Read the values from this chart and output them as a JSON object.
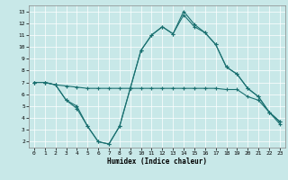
{
  "xlabel": "Humidex (Indice chaleur)",
  "bg_color": "#c8e8e8",
  "line_color": "#1a7070",
  "grid_color": "#ffffff",
  "xlim": [
    -0.5,
    23.5
  ],
  "ylim": [
    1.5,
    13.5
  ],
  "xticks": [
    0,
    1,
    2,
    3,
    4,
    5,
    6,
    7,
    8,
    9,
    10,
    11,
    12,
    13,
    14,
    15,
    16,
    17,
    18,
    19,
    20,
    21,
    22,
    23
  ],
  "yticks": [
    2,
    3,
    4,
    5,
    6,
    7,
    8,
    9,
    10,
    11,
    12,
    13
  ],
  "line1_x": [
    0,
    1,
    2,
    3,
    4,
    5,
    6,
    7,
    8,
    9,
    10,
    11,
    12,
    13,
    14,
    15,
    16,
    17,
    18,
    19,
    20,
    21,
    22,
    23
  ],
  "line1_y": [
    7.0,
    7.0,
    6.8,
    6.7,
    6.6,
    6.5,
    6.5,
    6.5,
    6.5,
    6.5,
    6.5,
    6.5,
    6.5,
    6.5,
    6.5,
    6.5,
    6.5,
    6.5,
    6.4,
    6.4,
    5.8,
    5.5,
    4.5,
    3.5
  ],
  "line2_x": [
    0,
    1,
    2,
    3,
    4,
    5,
    6,
    7,
    8,
    9,
    10,
    11,
    12,
    13,
    14,
    15,
    16,
    17,
    18,
    19,
    20,
    21,
    22,
    23
  ],
  "line2_y": [
    7.0,
    7.0,
    6.8,
    5.5,
    5.0,
    3.3,
    2.0,
    1.8,
    3.3,
    6.5,
    9.7,
    11.0,
    11.7,
    11.1,
    12.7,
    11.7,
    11.2,
    10.2,
    8.3,
    7.7,
    6.5,
    5.8,
    4.5,
    3.7
  ],
  "line3_x": [
    0,
    1,
    2,
    3,
    4,
    5,
    6,
    7,
    8,
    9,
    10,
    11,
    12,
    13,
    14,
    15,
    16,
    17,
    18,
    19,
    20,
    21,
    22,
    23
  ],
  "line3_y": [
    7.0,
    7.0,
    6.8,
    5.5,
    4.8,
    3.3,
    2.0,
    1.8,
    3.3,
    6.5,
    9.7,
    11.0,
    11.7,
    11.1,
    13.0,
    11.9,
    11.2,
    10.2,
    8.3,
    7.7,
    6.5,
    5.8,
    4.5,
    3.7
  ]
}
